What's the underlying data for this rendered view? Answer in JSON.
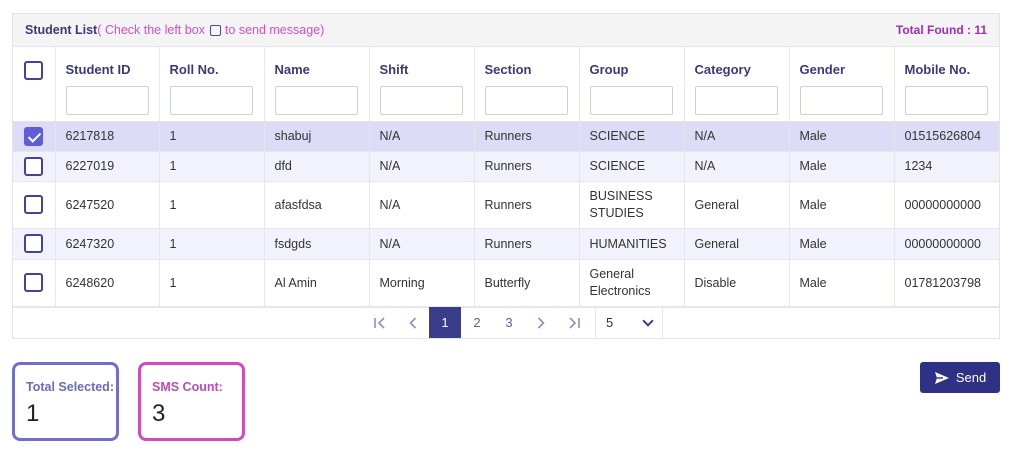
{
  "header": {
    "title": "Student List",
    "hint_prefix": "( Check the left box",
    "hint_suffix": "to send message)",
    "total_found": "Total Found : 11"
  },
  "columns": [
    "Student ID",
    "Roll No.",
    "Name",
    "Shift",
    "Section",
    "Group",
    "Category",
    "Gender",
    "Mobile No."
  ],
  "rows": [
    {
      "checked": true,
      "student_id": "6217818",
      "roll": "1",
      "name": "shabuj",
      "shift": "N/A",
      "section": "Runners",
      "group": "SCIENCE",
      "category": "N/A",
      "gender": "Male",
      "mobile": "01515626804"
    },
    {
      "checked": false,
      "student_id": "6227019",
      "roll": "1",
      "name": "dfd",
      "shift": "N/A",
      "section": "Runners",
      "group": "SCIENCE",
      "category": "N/A",
      "gender": "Male",
      "mobile": "1234"
    },
    {
      "checked": false,
      "student_id": "6247520",
      "roll": "1",
      "name": "afasfdsa",
      "shift": "N/A",
      "section": "Runners",
      "group": "BUSINESS STUDIES",
      "category": "General",
      "gender": "Male",
      "mobile": "00000000000"
    },
    {
      "checked": false,
      "student_id": "6247320",
      "roll": "1",
      "name": "fsdgds",
      "shift": "N/A",
      "section": "Runners",
      "group": "HUMANITIES",
      "category": "General",
      "gender": "Male",
      "mobile": "00000000000"
    },
    {
      "checked": false,
      "student_id": "6248620",
      "roll": "1",
      "name": "Al Amin",
      "shift": "Morning",
      "section": "Butterfly",
      "group": "General Electronics",
      "category": "Disable",
      "gender": "Male",
      "mobile": "01781203798"
    }
  ],
  "pagination": {
    "first_icon": "chevron-double-left-icon",
    "prev_icon": "chevron-left-icon",
    "next_icon": "chevron-right-icon",
    "last_icon": "chevron-double-right-icon",
    "pages": [
      "1",
      "2",
      "3"
    ],
    "current_page": "1",
    "page_size": "5"
  },
  "summary": {
    "total_selected_label": "Total Selected:",
    "total_selected_value": "1",
    "sms_count_label": "SMS Count:",
    "sms_count_value": "3"
  },
  "send_button": {
    "label": "Send",
    "icon": "send-icon"
  },
  "colors": {
    "primary": "#2e3186",
    "accent_pink": "#d04ac0",
    "accent_purple": "#7070cc",
    "selected_row": "#dcdcf6"
  }
}
